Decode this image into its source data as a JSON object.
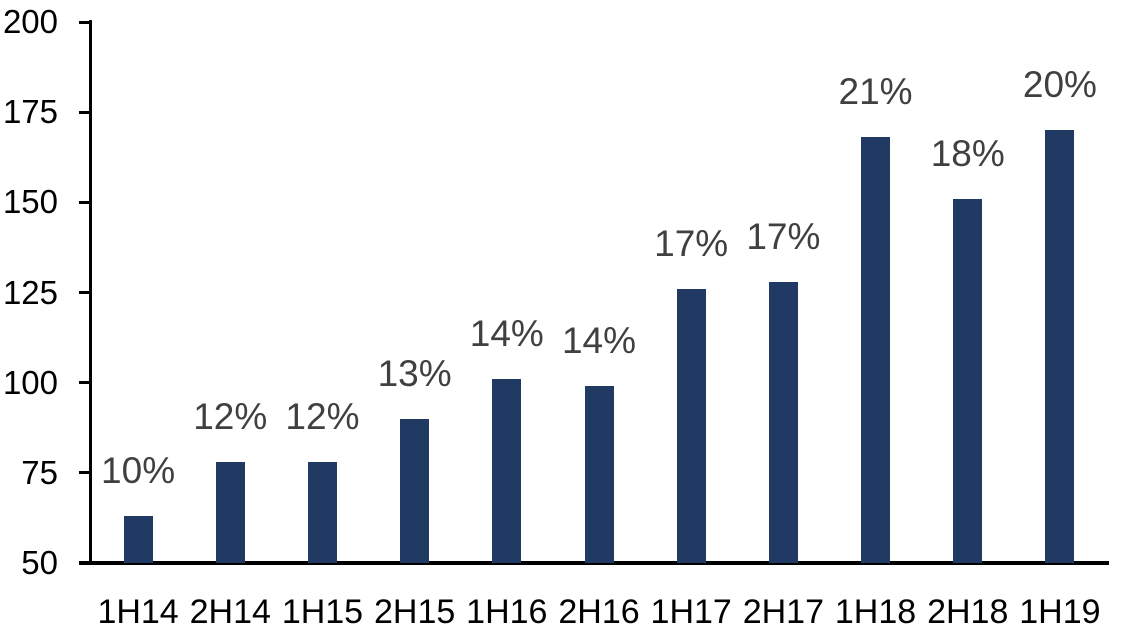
{
  "chart_data": {
    "type": "bar",
    "title": "",
    "xlabel": "",
    "ylabel": "",
    "categories": [
      "1H14",
      "2H14",
      "1H15",
      "2H15",
      "1H16",
      "2H16",
      "1H17",
      "2H17",
      "1H18",
      "2H18",
      "1H19"
    ],
    "values": [
      63,
      78,
      78,
      90,
      101,
      99,
      126,
      128,
      168,
      151,
      170
    ],
    "bar_labels": [
      "10%",
      "12%",
      "12%",
      "13%",
      "14%",
      "14%",
      "17%",
      "17%",
      "21%",
      "18%",
      "20%"
    ],
    "ylim": [
      50,
      200
    ],
    "yticks": [
      50,
      75,
      100,
      125,
      150,
      175,
      200
    ],
    "grid": false,
    "legend_position": "none",
    "colors": {
      "bar": "#203a63",
      "value_label": "#404040",
      "axis": "#000000",
      "background": "#ffffff"
    }
  }
}
